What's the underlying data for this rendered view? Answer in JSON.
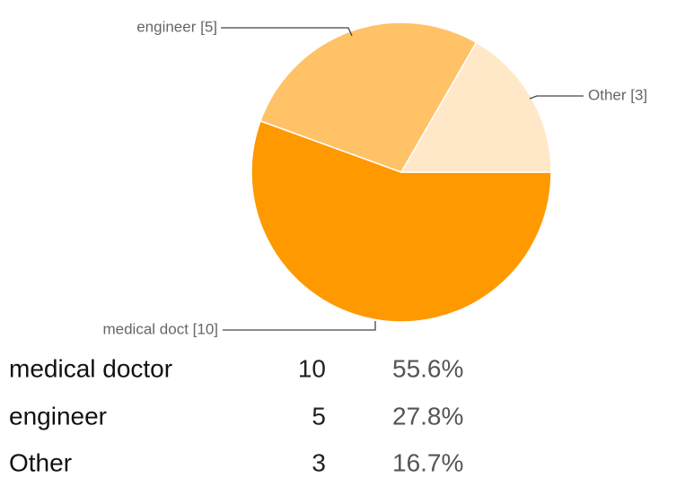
{
  "chart_data": {
    "type": "pie",
    "categories": [
      "medical doctor",
      "engineer",
      "Other"
    ],
    "values": [
      10,
      5,
      3
    ],
    "colors": [
      "#ff9900",
      "#ffc266",
      "#ffe8c8"
    ],
    "slice_labels": [
      "medical doct [10]",
      "engineer [5]",
      "Other [3]"
    ],
    "percentages": [
      55.6,
      27.8,
      16.7
    ],
    "percentage_labels": [
      "55.6%",
      "27.8%",
      "16.7%"
    ]
  }
}
